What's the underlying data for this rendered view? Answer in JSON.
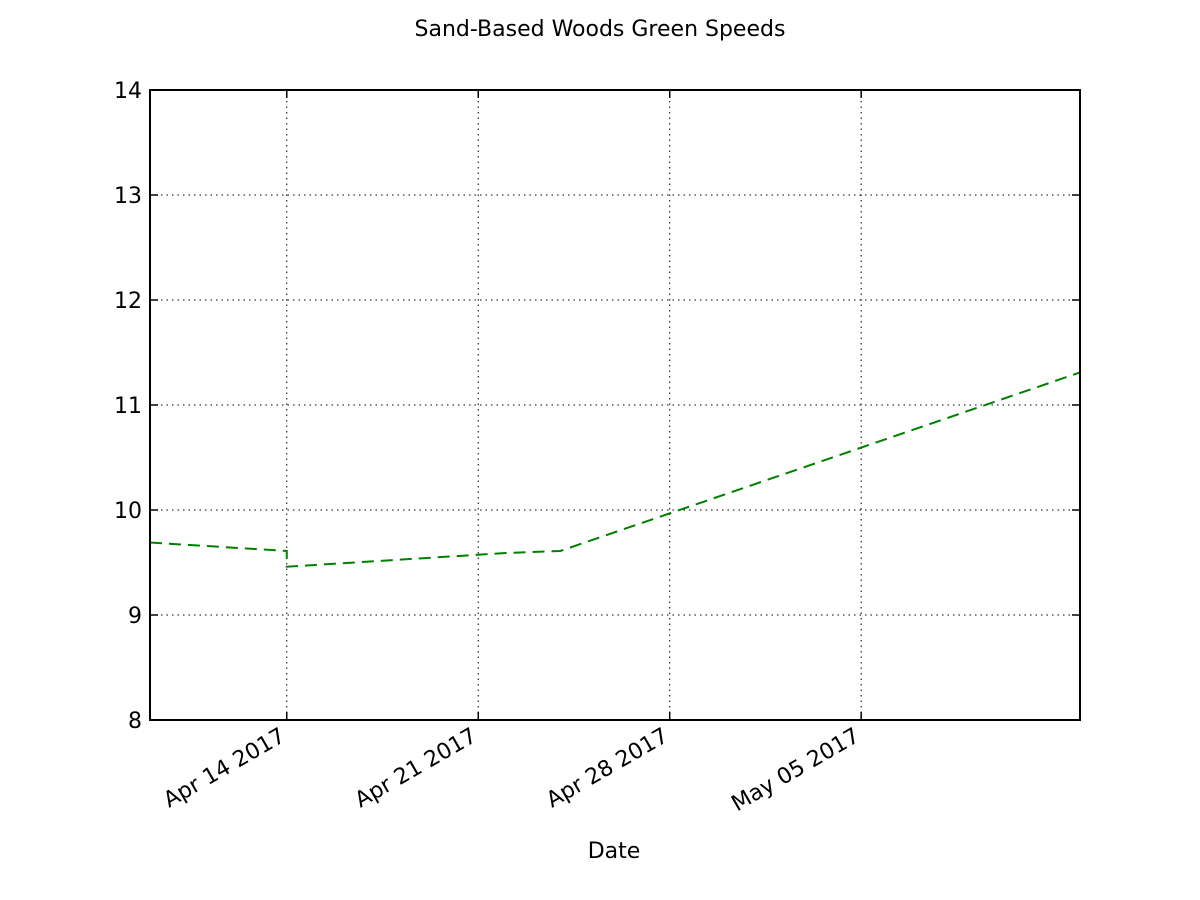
{
  "chart_data": {
    "type": "line",
    "title": "Sand-Based Woods Green Speeds",
    "xlabel": "Date",
    "ylabel": "",
    "x_axis": {
      "type": "date",
      "range": [
        "2017-04-09",
        "2017-05-13"
      ],
      "ticks": [
        {
          "date": "2017-04-14",
          "label": "Apr 14 2017"
        },
        {
          "date": "2017-04-21",
          "label": "Apr 21 2017"
        },
        {
          "date": "2017-04-28",
          "label": "Apr 28 2017"
        },
        {
          "date": "2017-05-05",
          "label": "May 05 2017"
        }
      ]
    },
    "y_axis": {
      "range": [
        8,
        14
      ],
      "ticks": [
        8,
        9,
        10,
        11,
        12,
        13,
        14
      ]
    },
    "grid": true,
    "series": [
      {
        "color": "#008000",
        "line_style": "dashed",
        "points": [
          {
            "x": "2017-04-09",
            "y": 9.69
          },
          {
            "x": "2017-04-14",
            "y": 9.61
          },
          {
            "x": "2017-04-14",
            "y": 9.46
          },
          {
            "x": "2017-04-22",
            "y": 9.59
          },
          {
            "x": "2017-04-24",
            "y": 9.61
          },
          {
            "x": "2017-05-13",
            "y": 11.31
          }
        ]
      }
    ]
  }
}
